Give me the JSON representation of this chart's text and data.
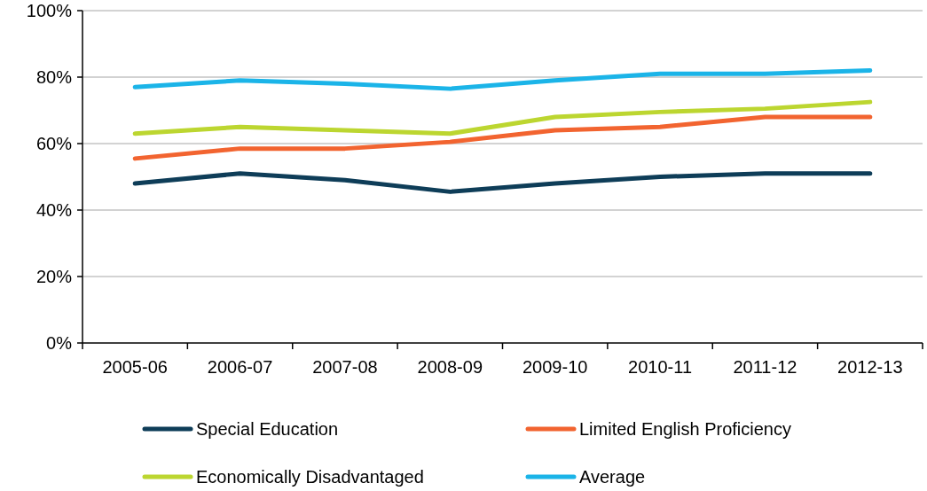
{
  "chart_data": {
    "type": "line",
    "categories": [
      "2005-06",
      "2006-07",
      "2007-08",
      "2008-09",
      "2009-10",
      "2010-11",
      "2011-12",
      "2012-13"
    ],
    "series": [
      {
        "name": "Special Education",
        "color": "#0e3d58",
        "values": [
          48,
          51,
          49,
          45.5,
          48,
          50,
          51,
          51
        ]
      },
      {
        "name": "Limited English Proficiency",
        "color": "#f26430",
        "values": [
          55.5,
          58.5,
          58.5,
          60.5,
          64,
          65,
          68,
          68
        ]
      },
      {
        "name": "Economically Disadvantaged",
        "color": "#bcd630",
        "values": [
          63,
          65,
          64,
          63,
          68,
          69.5,
          70.5,
          72.5
        ]
      },
      {
        "name": "Average",
        "color": "#1bb4e8",
        "values": [
          77,
          79,
          78,
          76.5,
          79,
          81,
          81,
          82
        ]
      }
    ],
    "ylim": [
      0,
      100
    ],
    "yticks": [
      {
        "value": 0,
        "label": "0%"
      },
      {
        "value": 20,
        "label": "20%"
      },
      {
        "value": 40,
        "label": "40%"
      },
      {
        "value": 60,
        "label": "60%"
      },
      {
        "value": 80,
        "label": "80%"
      },
      {
        "value": 100,
        "label": "100%"
      }
    ],
    "grid": "y",
    "legend": "bottom",
    "marker": "none",
    "line_style": "solid"
  }
}
